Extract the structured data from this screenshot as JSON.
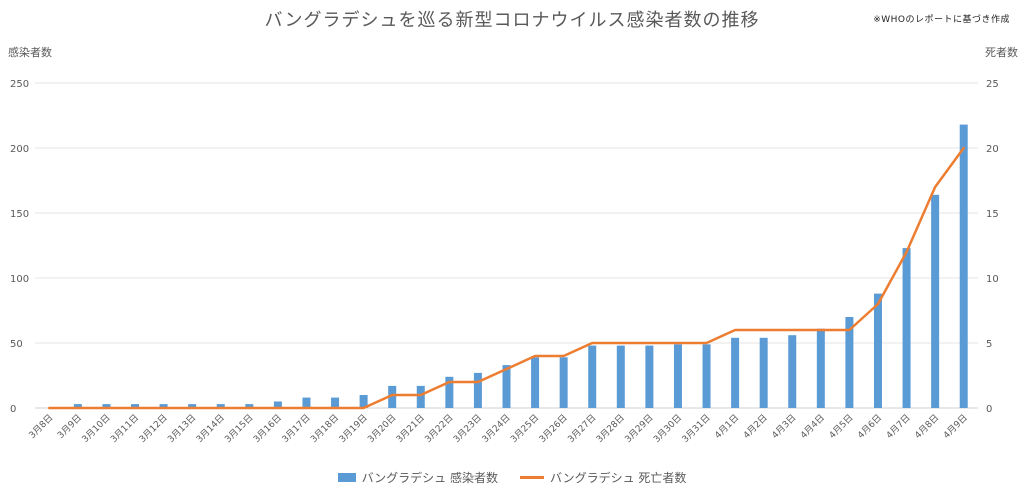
{
  "note": "※WHOのレポートに基づき作成",
  "chart_data": {
    "type": "bar+line",
    "title": "バングラデシュを巡る新型コロナウイルス感染者数の推移",
    "y_left_label": "感染者数",
    "y_right_label": "死者数",
    "y_left_ticks": [
      "0",
      "50",
      "100",
      "150",
      "200",
      "250"
    ],
    "y_right_ticks": [
      "0",
      "5",
      "10",
      "15",
      "20",
      "25"
    ],
    "ylim_left": [
      0,
      250
    ],
    "ylim_right": [
      0,
      25
    ],
    "grid": true,
    "legend_position": "bottom",
    "categories": [
      "3月8日",
      "3月9日",
      "3月10日",
      "3月11日",
      "3月12日",
      "3月13日",
      "3月14日",
      "3月15日",
      "3月16日",
      "3月17日",
      "3月18日",
      "3月19日",
      "3月20日",
      "3月21日",
      "3月22日",
      "3月23日",
      "3月24日",
      "3月25日",
      "3月26日",
      "3月27日",
      "3月28日",
      "3月29日",
      "3月30日",
      "3月31日",
      "4月1日",
      "4月2日",
      "4月3日",
      "4月4日",
      "4月5日",
      "4月6日",
      "4月7日",
      "4月8日",
      "4月9日"
    ],
    "series": [
      {
        "name": "バングラデシュ 感染者数",
        "type": "bar",
        "axis": "left",
        "color": "#5b9bd5",
        "values": [
          0,
          3,
          3,
          3,
          3,
          3,
          3,
          3,
          5,
          8,
          8,
          10,
          17,
          17,
          24,
          27,
          33,
          39,
          39,
          48,
          48,
          48,
          49,
          49,
          54,
          54,
          56,
          61,
          70,
          88,
          123,
          164,
          218
        ]
      },
      {
        "name": "バングラデシュ 死亡者数",
        "type": "line",
        "axis": "right",
        "color": "#ed7d31",
        "values": [
          0,
          0,
          0,
          0,
          0,
          0,
          0,
          0,
          0,
          0,
          0,
          0,
          1,
          1,
          2,
          2,
          3,
          4,
          4,
          5,
          5,
          5,
          5,
          5,
          6,
          6,
          6,
          6,
          6,
          8,
          12,
          17,
          20
        ]
      }
    ]
  }
}
